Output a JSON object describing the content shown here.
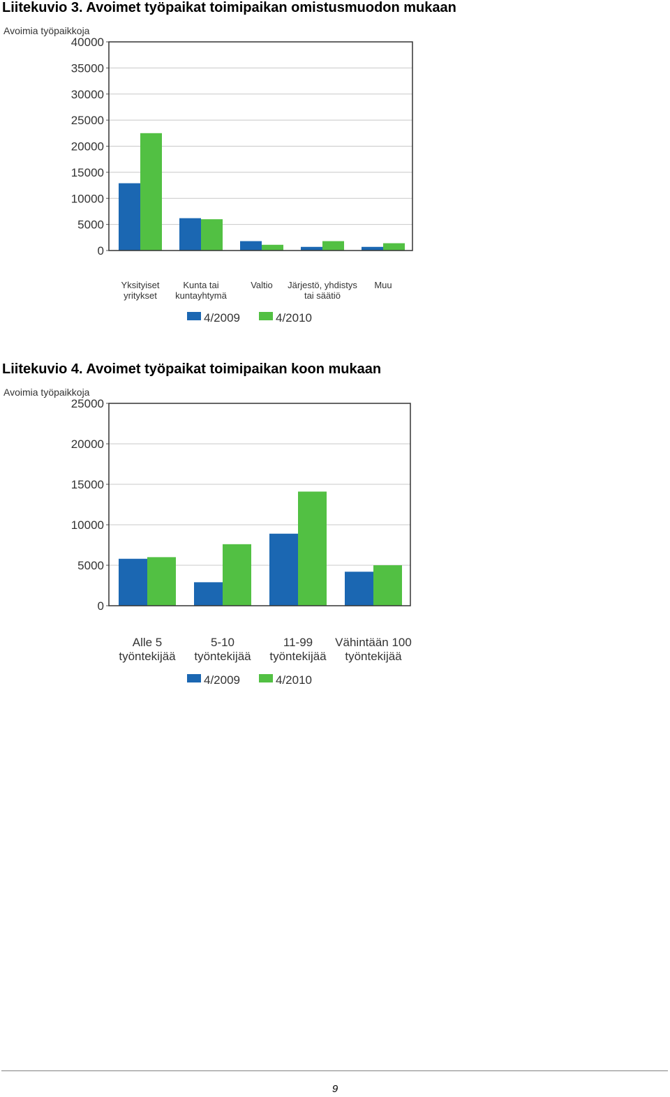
{
  "figures": [
    {
      "title": "Liitekuvio 3. Avoimet työpaikat toimipaikan omistusmuodon mukaan",
      "chart_data": {
        "type": "bar",
        "ylabel": "Avoimia työpaikkoja",
        "ylim": [
          0,
          40000
        ],
        "yticks": [
          0,
          5000,
          10000,
          15000,
          20000,
          25000,
          30000,
          35000,
          40000
        ],
        "grid": true,
        "legend_position": "bottom",
        "categories": [
          [
            "Yksityiset",
            "yritykset"
          ],
          [
            "Kunta tai",
            "kuntayhtymä"
          ],
          [
            "Valtio"
          ],
          [
            "Järjestö, yhdistys",
            "tai säätiö"
          ],
          [
            "Muu"
          ]
        ],
        "series": [
          {
            "name": "4/2009",
            "color": "#1b67b2",
            "values": [
              12900,
              6200,
              1800,
              700,
              700
            ]
          },
          {
            "name": "4/2010",
            "color": "#52c043",
            "values": [
              22500,
              6000,
              1100,
              1800,
              1400
            ]
          }
        ]
      }
    },
    {
      "title": "Liitekuvio 4. Avoimet työpaikat toimipaikan koon mukaan",
      "chart_data": {
        "type": "bar",
        "ylabel": "Avoimia työpaikkoja",
        "ylim": [
          0,
          25000
        ],
        "yticks": [
          0,
          5000,
          10000,
          15000,
          20000,
          25000
        ],
        "grid": true,
        "legend_position": "bottom",
        "categories": [
          [
            "Alle 5",
            "työntekijää"
          ],
          [
            "5-10",
            "työntekijää"
          ],
          [
            "11-99",
            "työntekijää"
          ],
          [
            "Vähintään 100",
            "työntekijää"
          ]
        ],
        "series": [
          {
            "name": "4/2009",
            "color": "#1b67b2",
            "values": [
              5800,
              2900,
              8900,
              4200
            ]
          },
          {
            "name": "4/2010",
            "color": "#52c043",
            "values": [
              6000,
              7600,
              14100,
              5000
            ]
          }
        ]
      }
    }
  ],
  "footer": {
    "page_number": "9"
  }
}
